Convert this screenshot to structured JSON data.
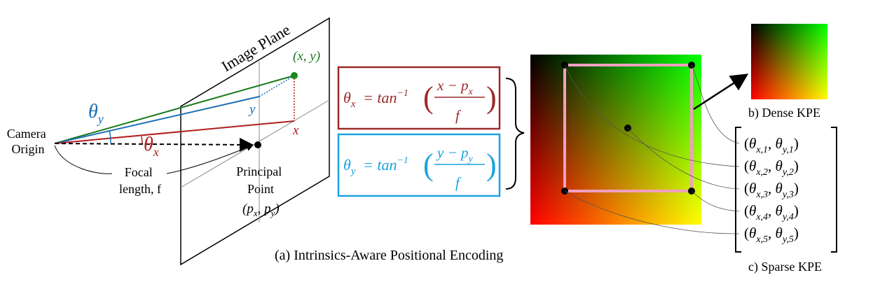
{
  "camera": {
    "image_plane_label": "Image Plane",
    "point_label": "(x, y)",
    "camera_origin_line1": "Camera",
    "camera_origin_line2": "Origin",
    "focal_line1": "Focal",
    "focal_line2": "length, f",
    "principal_line1": "Principal",
    "principal_line2": "Point",
    "principal_coords": "(p",
    "theta_y": "θ",
    "theta_y_sub": "y",
    "theta_x": "θ",
    "theta_x_sub": "x",
    "y_label": "y",
    "x_label": "x"
  },
  "equations": {
    "eq_x": {
      "lhs": "θ",
      "lhs_sub": "x",
      "func": "= tan",
      "sup": "−1",
      "numerator": "x − p",
      "num_sub": "x",
      "denominator": "f"
    },
    "eq_y": {
      "lhs": "θ",
      "lhs_sub": "y",
      "func": "= tan",
      "sup": "−1",
      "numerator": "y − p",
      "num_sub": "y",
      "denominator": "f"
    }
  },
  "captions": {
    "main": "(a) Intrinsics-Aware Positional Encoding",
    "dense": "b) Dense KPE",
    "sparse": "c) Sparse KPE"
  },
  "sparse_kpe": [
    {
      "i": "1"
    },
    {
      "i": "2"
    },
    {
      "i": "3"
    },
    {
      "i": "4"
    },
    {
      "i": "5"
    }
  ],
  "colors": {
    "ray_green": "#1a7a1a",
    "ray_blue": "#1a6fb5",
    "ray_red": "#b01e1e",
    "point_green": "#1a8a1a",
    "eq_red": "#9b2a2a",
    "eq_blue": "#1aa3e0",
    "box_pink": "#f0a0c0"
  }
}
